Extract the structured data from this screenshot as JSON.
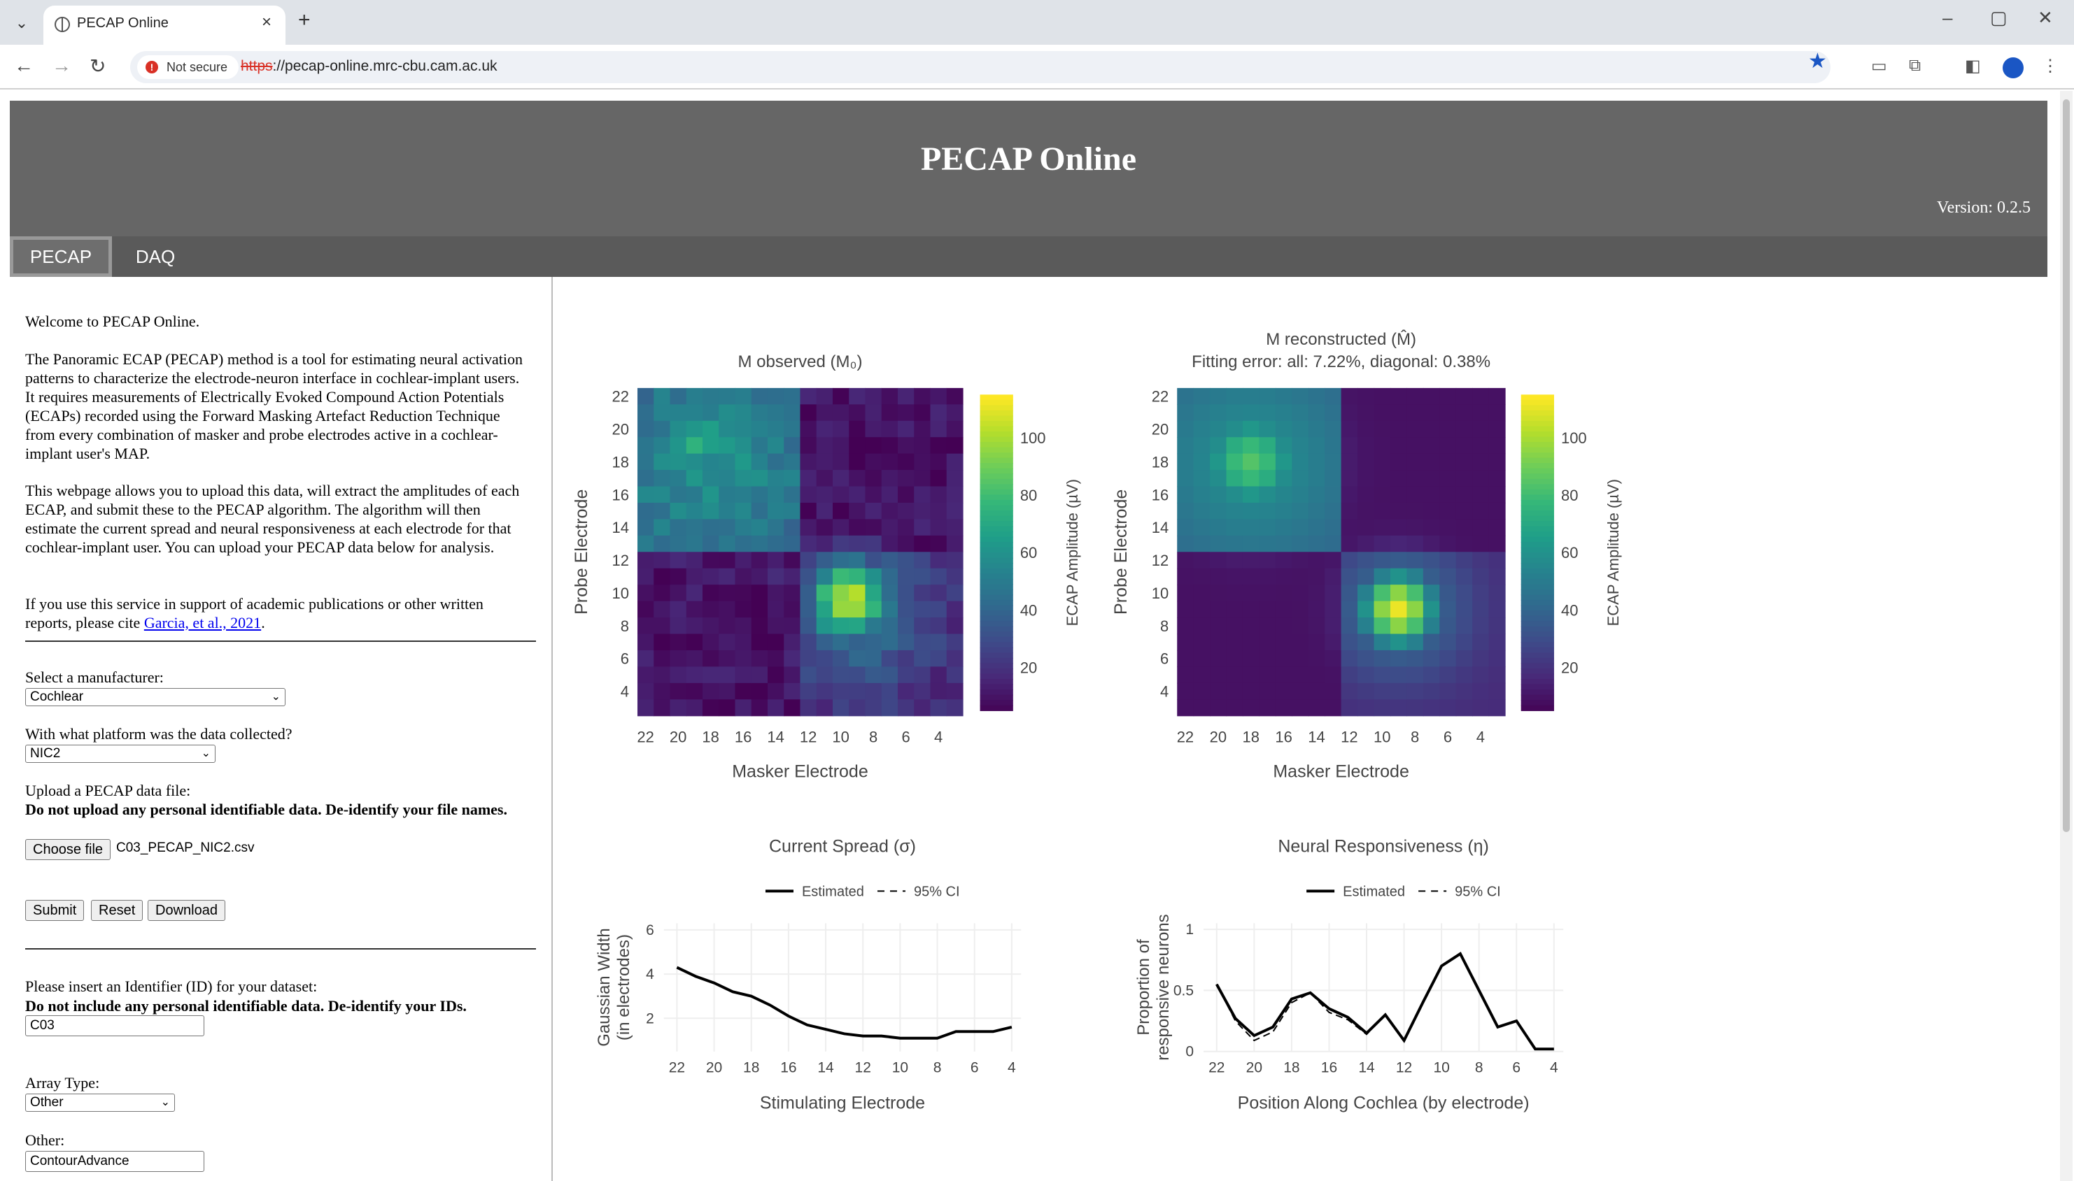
{
  "browser": {
    "tab_title": "PECAP Online",
    "security_label": "Not secure",
    "url_scheme": "https",
    "url_rest": "://pecap-online.mrc-cbu.cam.ac.uk"
  },
  "header": {
    "title": "PECAP Online",
    "version": "Version: 0.2.5"
  },
  "nav_tabs": [
    "PECAP",
    "DAQ"
  ],
  "sidebar": {
    "welcome": "Welcome to PECAP Online.",
    "para1": "The Panoramic ECAP (PECAP) method is a tool for estimating neural activation patterns to characterize the electrode-neuron interface in cochlear-implant users. It requires measurements of Electrically Evoked Compound Action Potentials (ECAPs) recorded using the Forward Masking Artefact Reduction Technique from every combination of masker and probe electrodes active in a cochlear-implant user's MAP.",
    "para2": "This webpage allows you to upload this data, will extract the amplitudes of each ECAP, and submit these to the PECAP algorithm. The algorithm will then estimate the current spread and neural responsiveness at each electrode for that cochlear-implant user. You can upload your PECAP data below for analysis.",
    "para3_pre": "If you use this service in support of academic publications or other written reports, please cite ",
    "cite_link": "Garcia, et al., 2021",
    "para3_post": ".",
    "manufacturer_label": "Select a manufacturer:",
    "manufacturer_value": "Cochlear",
    "platform_label": "With what platform was the data collected?",
    "platform_value": "NIC2",
    "upload_label": "Upload a PECAP data file:",
    "upload_warning": "Do not upload any personal identifiable data. De-identify your file names.",
    "choose_file": "Choose file",
    "file_name": "C03_PECAP_NIC2.csv",
    "submit": "Submit",
    "reset": "Reset",
    "download": "Download",
    "id_label": "Please insert an Identifier (ID) for your dataset:",
    "id_warning": "Do not include any personal identifiable data. De-identify your IDs.",
    "id_value": "C03",
    "array_label": "Array Type:",
    "array_value": "Other",
    "other_label": "Other:",
    "other_value": "ContourAdvance"
  },
  "chart_data": [
    {
      "type": "heatmap",
      "title": "M observed (M₀)",
      "xlabel": "Masker Electrode",
      "ylabel": "Probe Electrode",
      "colorbar_label": "ECAP Amplitude (µV)",
      "colorbar_ticks": [
        20,
        40,
        60,
        80,
        100
      ],
      "x_ticks": [
        22,
        20,
        18,
        16,
        14,
        12,
        10,
        8,
        6,
        4
      ],
      "y_ticks": [
        22,
        20,
        18,
        16,
        14,
        12,
        10,
        8,
        6,
        4
      ],
      "electrode_range": [
        3,
        22
      ],
      "hotspots": [
        {
          "masker": 9.5,
          "probe": 9.5,
          "peak": 110
        },
        {
          "masker": 19,
          "probe": 19,
          "peak": 70
        }
      ]
    },
    {
      "type": "heatmap",
      "title": "M reconstructed (M̂)",
      "subtitle": "Fitting error: all: 7.22%, diagonal: 0.38%",
      "xlabel": "Masker Electrode",
      "ylabel": "Probe Electrode",
      "colorbar_label": "ECAP Amplitude (µV)",
      "colorbar_ticks": [
        20,
        40,
        60,
        80,
        100
      ],
      "x_ticks": [
        22,
        20,
        18,
        16,
        14,
        12,
        10,
        8,
        6,
        4
      ],
      "y_ticks": [
        22,
        20,
        18,
        16,
        14,
        12,
        10,
        8,
        6,
        4
      ],
      "electrode_range": [
        3,
        22
      ],
      "hotspots": [
        {
          "masker": 9,
          "probe": 9,
          "peak": 112
        },
        {
          "masker": 18,
          "probe": 18,
          "peak": 85
        }
      ]
    },
    {
      "type": "line",
      "title": "Current Spread (σ)",
      "xlabel": "Stimulating Electrode",
      "ylabel": "Gaussian Width (in electrodes)",
      "legend": [
        "Estimated",
        "95% CI"
      ],
      "x_ticks": [
        22,
        20,
        18,
        16,
        14,
        12,
        10,
        8,
        6,
        4
      ],
      "y_ticks": [
        2,
        4,
        6
      ],
      "ylim": [
        0.5,
        6.3
      ],
      "x": [
        22,
        21,
        20,
        19,
        18,
        17,
        16,
        15,
        14,
        13,
        12,
        11,
        10,
        9,
        8,
        7,
        6,
        5,
        4
      ],
      "series": [
        {
          "name": "Estimated",
          "values": [
            4.3,
            3.9,
            3.6,
            3.2,
            3.0,
            2.6,
            2.1,
            1.7,
            1.5,
            1.3,
            1.2,
            1.2,
            1.1,
            1.1,
            1.1,
            1.4,
            1.4,
            1.4,
            1.6
          ]
        }
      ]
    },
    {
      "type": "line",
      "title": "Neural Responsiveness (η)",
      "xlabel": "Position Along Cochlea (by electrode)",
      "ylabel": "Proportion of responsive neurons",
      "legend": [
        "Estimated",
        "95% CI"
      ],
      "x_ticks": [
        22,
        20,
        18,
        16,
        14,
        12,
        10,
        8,
        6,
        4
      ],
      "y_ticks": [
        0,
        0.5,
        1
      ],
      "ylim": [
        0,
        1.05
      ],
      "x": [
        22,
        21,
        20,
        19,
        18,
        17,
        16,
        15,
        14,
        13,
        12,
        11,
        10,
        9,
        8,
        7,
        6,
        5,
        4
      ],
      "series": [
        {
          "name": "Estimated",
          "values": [
            0.55,
            0.27,
            0.13,
            0.2,
            0.43,
            0.48,
            0.35,
            0.28,
            0.15,
            0.3,
            0.09,
            0.4,
            0.7,
            0.8,
            0.5,
            0.2,
            0.25,
            0.02,
            0.02
          ]
        },
        {
          "name": "95% CI",
          "values": [
            0.55,
            0.25,
            0.09,
            0.16,
            0.4,
            0.48,
            0.32,
            0.26,
            0.14,
            0.3,
            0.09,
            0.4,
            0.7,
            0.8,
            0.5,
            0.2,
            0.25,
            0.02,
            0.02
          ]
        }
      ]
    }
  ]
}
